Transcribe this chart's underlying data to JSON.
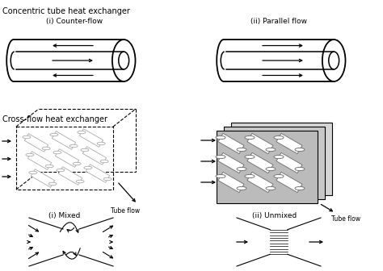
{
  "title": "Concentric tube heat exchanger",
  "subtitle1": "(i) Counter-flow",
  "subtitle2": "(ii) Parallel flow",
  "subtitle3": "Cross-flow heat exchanger",
  "subtitle4": "(i) Mixed",
  "subtitle5": "(ii) Unmixed",
  "label_tube_flow1": "Tube flow",
  "label_tube_flow2": "Tube flow",
  "bg_color": "#ffffff",
  "line_color": "#000000",
  "gray_light": "#c8c8c8",
  "gray_mid": "#b0b0b0",
  "gray_dark": "#888888",
  "tube_gray": "#cccccc"
}
